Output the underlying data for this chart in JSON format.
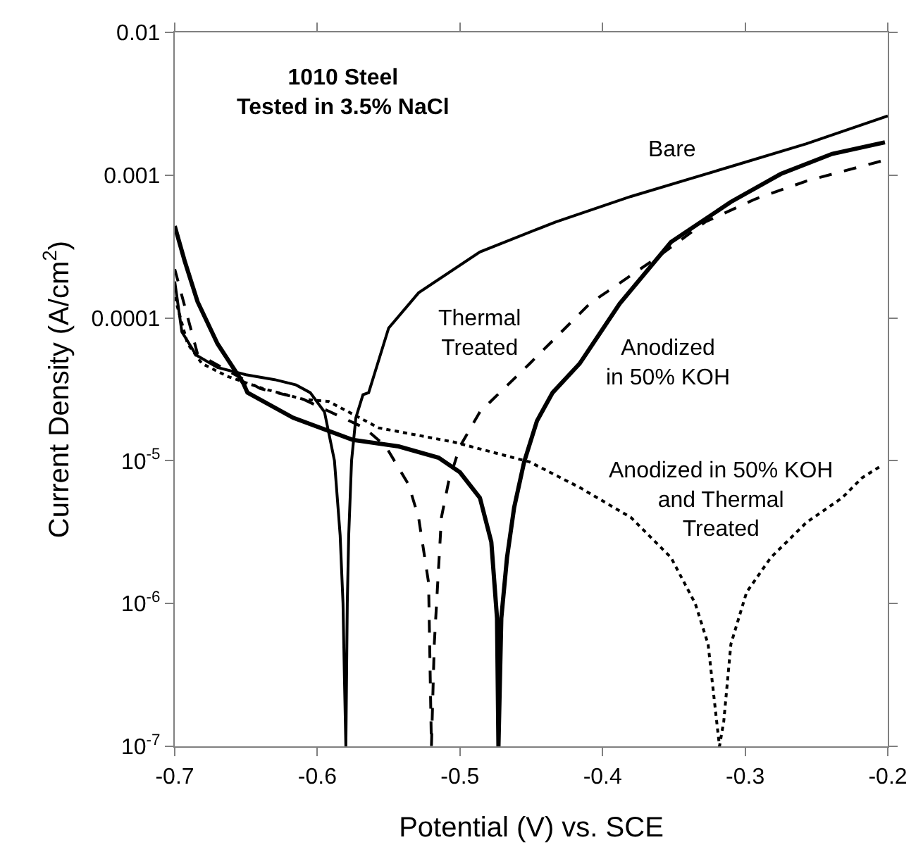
{
  "chart_data": {
    "type": "line",
    "title": "1010 Steel\nTested in 3.5% NaCl",
    "xlabel": "Potential (V) vs. SCE",
    "ylabel": "Current Density (A/cm$^{2}$)",
    "log": "y",
    "legend": false,
    "marker": "none",
    "xlim": [
      -0.7,
      -0.2
    ],
    "xticks": [
      -0.7,
      -0.6,
      -0.5,
      -0.4,
      -0.3,
      -0.2
    ],
    "ylim": [
      1e-07,
      0.01
    ],
    "yticks": [
      {
        "value": 0.01,
        "label": "0.01"
      },
      {
        "value": 0.001,
        "label": "0.001"
      },
      {
        "value": 0.0001,
        "label": "0.0001"
      },
      {
        "value": 1e-05,
        "label": "10$^{-5}$"
      },
      {
        "value": 1e-06,
        "label": "10$^{-6}$"
      },
      {
        "value": 1e-07,
        "label": "10$^{-7}$"
      }
    ],
    "series": [
      {
        "name": "Bare",
        "color": "#000000",
        "line_style": "solid",
        "x": [
          -0.7,
          -0.695,
          -0.685,
          -0.67,
          -0.65,
          -0.63,
          -0.615,
          -0.605,
          -0.595,
          -0.588,
          -0.584,
          -0.582,
          -0.581,
          -0.58,
          -0.579,
          -0.578,
          -0.576,
          -0.573,
          -0.568,
          -0.564,
          -0.55,
          -0.529,
          -0.486,
          -0.433,
          -0.38,
          -0.31,
          -0.257,
          -0.2
        ],
        "values": [
          0.00018,
          8e-05,
          5.5e-05,
          4.5e-05,
          4e-05,
          3.7e-05,
          3.4e-05,
          3e-05,
          2.2e-05,
          1e-05,
          3e-06,
          1e-06,
          3e-07,
          1e-07,
          1e-06,
          3e-06,
          1e-05,
          2e-05,
          2.9e-05,
          3e-05,
          8.5e-05,
          0.00015,
          0.00029,
          0.00047,
          0.00071,
          0.00115,
          0.00166,
          0.0026
        ]
      },
      {
        "name": "Thermal\nTreated",
        "color": "#000000",
        "line_style": "dashed",
        "x": [
          -0.7,
          -0.684,
          -0.64,
          -0.61,
          -0.567,
          -0.552,
          -0.536,
          -0.529,
          -0.522,
          -0.52,
          -0.518,
          -0.513,
          -0.508,
          -0.5,
          -0.486,
          -0.451,
          -0.409,
          -0.363,
          -0.328,
          -0.293,
          -0.257,
          -0.204
        ],
        "values": [
          0.00022,
          5.6e-05,
          3.2e-05,
          2.7e-05,
          1.7e-05,
          1.26e-05,
          6.8e-06,
          4e-06,
          1.4e-06,
          1e-07,
          5.2e-07,
          4e-06,
          7.1e-06,
          1.26e-05,
          2.2e-05,
          4.8e-05,
          0.000126,
          0.00026,
          0.00047,
          0.00068,
          0.00091,
          0.00126
        ]
      },
      {
        "name": "Anodized\nin 50% KOH",
        "color": "#000000",
        "line_style": "solid",
        "x": [
          -0.7,
          -0.693,
          -0.684,
          -0.67,
          -0.652,
          -0.649,
          -0.617,
          -0.575,
          -0.543,
          -0.515,
          -0.5,
          -0.486,
          -0.478,
          -0.474,
          -0.473,
          -0.471,
          -0.467,
          -0.462,
          -0.455,
          -0.446,
          -0.435,
          -0.416,
          -0.388,
          -0.352,
          -0.31,
          -0.275,
          -0.239,
          -0.202
        ],
        "values": [
          0.00044,
          0.00025,
          0.00013,
          6.6e-05,
          3.5e-05,
          3e-05,
          2e-05,
          1.4e-05,
          1.26e-05,
          1.05e-05,
          8.3e-06,
          5.5e-06,
          2.7e-06,
          7.9e-07,
          1e-07,
          7.9e-07,
          2.1e-06,
          4.7e-06,
          9.8e-06,
          1.9e-05,
          3e-05,
          4.8e-05,
          0.000126,
          0.00034,
          0.00065,
          0.00102,
          0.00141,
          0.0017
        ]
      },
      {
        "name": "Anodized in 50% KOH\nand Thermal\nTreated",
        "color": "#000000",
        "line_style": "dotted",
        "x": [
          -0.7,
          -0.691,
          -0.681,
          -0.663,
          -0.638,
          -0.61,
          -0.592,
          -0.557,
          -0.504,
          -0.451,
          -0.416,
          -0.38,
          -0.352,
          -0.335,
          -0.326,
          -0.32,
          -0.318,
          -0.315,
          -0.31,
          -0.299,
          -0.282,
          -0.257,
          -0.232,
          -0.218,
          -0.204
        ],
        "values": [
          0.00014,
          6.6e-05,
          4.8e-05,
          3.9e-05,
          3.2e-05,
          2.7e-05,
          2.6e-05,
          1.7e-05,
          1.35e-05,
          9.8e-06,
          6.5e-06,
          4e-06,
          2.1e-06,
          1e-06,
          5.2e-07,
          1.5e-07,
          1e-07,
          1.5e-07,
          5.2e-07,
          1.2e-06,
          2.1e-06,
          3.7e-06,
          5.5e-06,
          7.6e-06,
          9.3e-06
        ]
      }
    ]
  }
}
